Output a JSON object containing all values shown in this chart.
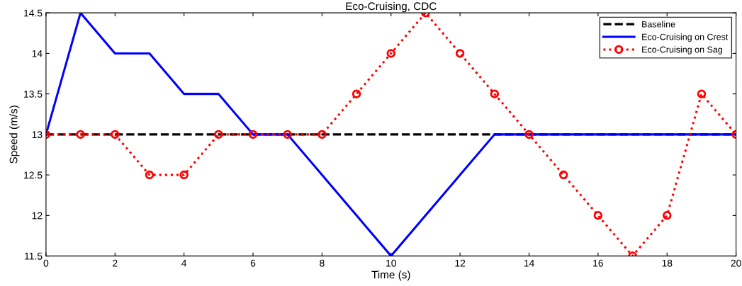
{
  "chart_data": {
    "type": "line",
    "title": "Eco-Cruising, CDC",
    "xlabel": "Time (s)",
    "ylabel": "Speed (m/s)",
    "x": [
      0,
      1,
      2,
      3,
      4,
      5,
      6,
      7,
      8,
      9,
      10,
      11,
      12,
      13,
      14,
      15,
      16,
      17,
      18,
      19,
      20
    ],
    "series": [
      {
        "name": "Baseline",
        "color": "#000000",
        "x": [
          0,
          20
        ],
        "values": [
          13,
          13
        ],
        "line_style": "dashed",
        "marker": "none"
      },
      {
        "name": "Eco-Cruising on Crest",
        "color": "#0000ff",
        "values": [
          13,
          14.5,
          14,
          14,
          13.5,
          13.5,
          13,
          13,
          12.5,
          12,
          11.5,
          12,
          12.5,
          13,
          13,
          13,
          13,
          13,
          13,
          13,
          13
        ],
        "line_style": "solid",
        "marker": "none"
      },
      {
        "name": "Eco-Cruising on Sag",
        "color": "#ff0000",
        "values": [
          13,
          13,
          13,
          12.5,
          12.5,
          13,
          13,
          13,
          13,
          13.5,
          14,
          14.5,
          14,
          13.5,
          13,
          12.5,
          12,
          11.5,
          12,
          13.5,
          13
        ],
        "line_style": "dotted",
        "marker": "circle"
      }
    ],
    "xlim": [
      0,
      20
    ],
    "xticks": [
      0,
      2,
      4,
      6,
      8,
      10,
      12,
      14,
      16,
      18,
      20
    ],
    "ylim": [
      11.5,
      14.5
    ],
    "yticks": [
      11.5,
      12,
      12.5,
      13,
      13.5,
      14,
      14.5
    ],
    "grid": false,
    "legend": "top right"
  }
}
